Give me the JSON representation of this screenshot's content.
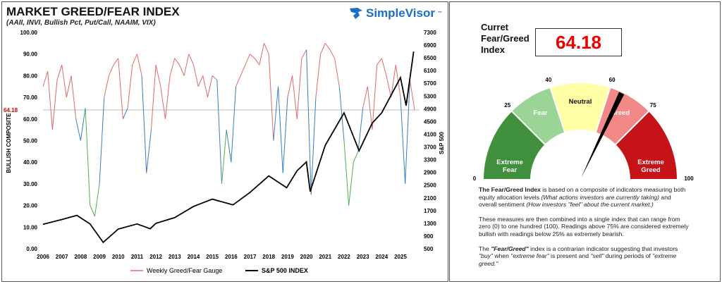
{
  "header": {
    "title": "MARKET GREED/FEAR INDEX",
    "subtitle": "(AAII, INVI, Bullish Pct, Put/Call, NAAIM, VIX)",
    "logo": "SimpleVisor",
    "logo_tm": "™"
  },
  "chart_data": {
    "type": "line",
    "title": "MARKET GREED/FEAR INDEX",
    "ylabel": "BULLISH COMPOSITE",
    "y2label": "S&P 500",
    "ylim": [
      0,
      100
    ],
    "y2lim": [
      500,
      7300
    ],
    "yticks": [
      "0.00",
      "10.00",
      "20.00",
      "30.00",
      "40.00",
      "50.00",
      "60.00",
      "70.00",
      "80.00",
      "90.00",
      "100.00"
    ],
    "y2ticks": [
      "500",
      "900",
      "1300",
      "1700",
      "2100",
      "2500",
      "2900",
      "3300",
      "3700",
      "4100",
      "4500",
      "4900",
      "5300",
      "5700",
      "6100",
      "6500",
      "6900",
      "7300"
    ],
    "xticks": [
      "2006",
      "2007",
      "2008",
      "2009",
      "2010",
      "2011",
      "2012",
      "2013",
      "2014",
      "2015",
      "2016",
      "2017",
      "2018",
      "2019",
      "2020",
      "2021",
      "2022",
      "2023",
      "2024",
      "2025"
    ],
    "reference_line": {
      "value": 64.18,
      "label": "64.18",
      "color": "#e00000"
    },
    "legend": {
      "position": "bottom",
      "entries": [
        "Weekly Greed/Fear Gauge",
        "S&P 500 INDEX"
      ]
    },
    "colors": {
      "greed": "#e06a6a",
      "neutral": "#3a80c0",
      "fear": "#4caf50",
      "sp500": "#000000"
    },
    "series": [
      {
        "name": "Weekly Greed/Fear Gauge",
        "x_start": 2006,
        "x_step": 0.25,
        "values": [
          75,
          82,
          55,
          78,
          85,
          70,
          80,
          60,
          50,
          65,
          20,
          15,
          30,
          70,
          80,
          85,
          88,
          60,
          65,
          85,
          90,
          80,
          35,
          55,
          85,
          75,
          60,
          80,
          88,
          85,
          80,
          90,
          85,
          75,
          80,
          70,
          80,
          78,
          30,
          55,
          40,
          75,
          80,
          85,
          90,
          88,
          85,
          95,
          90,
          50,
          75,
          35,
          70,
          80,
          60,
          88,
          92,
          25,
          70,
          90,
          95,
          92,
          88,
          75,
          50,
          20,
          40,
          45,
          65,
          75,
          55,
          85,
          88,
          80,
          70,
          85,
          70,
          30,
          78,
          64.18
        ]
      },
      {
        "name": "S&P 500 INDEX",
        "x": [
          2006,
          2007,
          2007.8,
          2008.5,
          2009.2,
          2010,
          2011,
          2011.7,
          2012,
          2013,
          2014,
          2015,
          2016.1,
          2017,
          2018,
          2018.95,
          2019.5,
          2020,
          2020.2,
          2021,
          2022,
          2022.8,
          2023.5,
          2024,
          2025,
          2025.3,
          2025.7
        ],
        "values": [
          1270,
          1420,
          1550,
          1280,
          700,
          1120,
          1280,
          1130,
          1300,
          1480,
          1830,
          2060,
          1880,
          2270,
          2790,
          2420,
          2950,
          3230,
          2300,
          3750,
          4770,
          3580,
          4450,
          4770,
          5880,
          5000,
          6700
        ]
      }
    ]
  },
  "panel": {
    "current_label": "Curret Fear/Greed Index",
    "current_label_lines": [
      "Curret",
      "Fear/Greed",
      "Index"
    ],
    "current_value": "64.18",
    "gauge": {
      "value": 64.18,
      "segments": [
        {
          "from": 0,
          "to": 25,
          "label": "Extreme Fear",
          "color": "#3f8f3c"
        },
        {
          "from": 25,
          "to": 40,
          "label": "Fear",
          "color": "#9ad596"
        },
        {
          "from": 40,
          "to": 60,
          "label": "Neutral",
          "color": "#ffffa6"
        },
        {
          "from": 60,
          "to": 75,
          "label": "Greed",
          "color": "#f38888"
        },
        {
          "from": 75,
          "to": 100,
          "label": "Extreme Greed",
          "color": "#c51318"
        }
      ],
      "ticks": [
        "0",
        "25",
        "40",
        "60",
        "75",
        "100"
      ]
    },
    "desc": {
      "p1_bold": "The Fear/Greed Index",
      "p1_a": " is based on a composite of indicators measuring both equity allocation levels ",
      "p1_i1": "(What actions investors are currently taking)",
      "p1_b": " and overall sentiment ",
      "p1_i2": "(How investors \"feel\" about the current market.)",
      "p2": "These measures are then combined into a single index that can range from zero (0) to one hundred (100). Readings above 75% are considered extremely bullish with readings below 25% as extremely bearish.",
      "p3_a": "The ",
      "p3_b": "\"Fear/Greed\"",
      "p3_c": " index is a contrarian indicator suggesting that investors ",
      "p3_d": "\"buy\"",
      "p3_e": " when ",
      "p3_f": "\"extreme fear\"",
      "p3_g": " is present and ",
      "p3_h": "\"sell\"",
      "p3_i": " during periods of ",
      "p3_j": "\"extreme greed.\""
    }
  }
}
